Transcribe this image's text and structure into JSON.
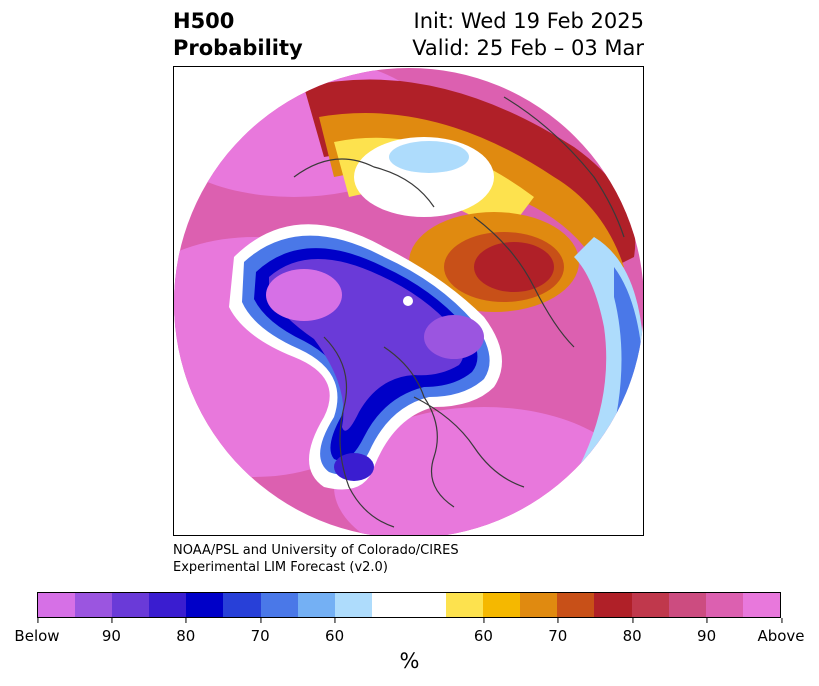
{
  "title": {
    "left_line1": "H500",
    "left_line2": "Probability",
    "right_line1": "Init: Wed 19 Feb 2025",
    "right_line2": "Valid: 25 Feb – 03 Mar"
  },
  "credit": {
    "line1": "NOAA/PSL and University of Colorado/CIRES",
    "line2": "Experimental LIM Forecast (v2.0)"
  },
  "colorbar": {
    "colors": [
      "#d670e6",
      "#9b55e0",
      "#6a3ad8",
      "#3a1dd0",
      "#0000c8",
      "#2840d8",
      "#4a78e8",
      "#74b0f4",
      "#aedcfc",
      "#ffffff",
      "#ffffff",
      "#fde24e",
      "#f5b800",
      "#e08a10",
      "#c85018",
      "#b02028",
      "#c0384c",
      "#cc4c80",
      "#dc60b0",
      "#e878dc"
    ],
    "tick_labels": [
      "Below",
      "90",
      "80",
      "70",
      "60",
      "60",
      "70",
      "80",
      "90",
      "Above"
    ],
    "unit": "%"
  },
  "map": {
    "projection": "north-polar-stereographic",
    "below_color": "#7a3ae0",
    "above_color": "#c0384c"
  }
}
